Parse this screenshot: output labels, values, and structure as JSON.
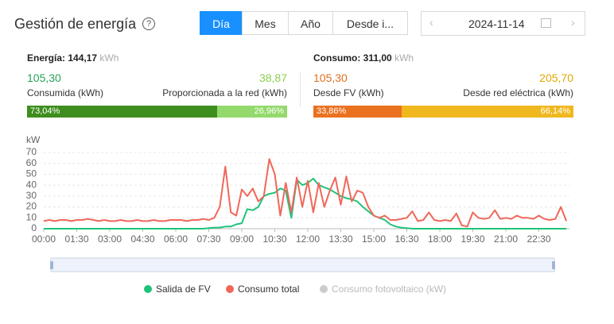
{
  "header": {
    "title": "Gestión de energía",
    "tabs": [
      "Día",
      "Mes",
      "Año",
      "Desde i..."
    ],
    "active_tab": 0,
    "date": "2024-11-14"
  },
  "panels": [
    {
      "label": "Energía:",
      "total": "144,17",
      "unit": "kWh",
      "parts": [
        {
          "value": "105,30",
          "label": "Consumida (kWh)",
          "share": 73.04,
          "share_label": "73,04%",
          "color": "#3e8e1f",
          "text_color": "#27a35a"
        },
        {
          "value": "38,87",
          "label": "Proporcionada a la red (kWh)",
          "share": 26.96,
          "share_label": "26,96%",
          "color": "#93d96b",
          "text_color": "#8ccf4f"
        }
      ]
    },
    {
      "label": "Consumo:",
      "total": "311,00",
      "unit": "kWh",
      "parts": [
        {
          "value": "105,30",
          "label": "Desde FV (kWh)",
          "share": 33.86,
          "share_label": "33,86%",
          "color": "#ea7120",
          "text_color": "#e07020"
        },
        {
          "value": "205,70",
          "label": "Desde red eléctrica (kWh)",
          "share": 66.14,
          "share_label": "66,14%",
          "color": "#efb81e",
          "text_color": "#e0a800"
        }
      ]
    }
  ],
  "chart_data": {
    "type": "line",
    "y_axis_label": "kW",
    "categories": [
      "00:00",
      null,
      null,
      null,
      null,
      null,
      "01:30",
      null,
      null,
      null,
      null,
      null,
      "03:00",
      null,
      null,
      null,
      null,
      null,
      "04:30",
      null,
      null,
      null,
      null,
      null,
      "06:00",
      null,
      null,
      null,
      null,
      null,
      "07:30",
      null,
      null,
      null,
      null,
      null,
      "09:00",
      null,
      null,
      null,
      null,
      null,
      "10:30",
      null,
      null,
      null,
      null,
      null,
      "12:00",
      null,
      null,
      null,
      null,
      null,
      "13:30",
      null,
      null,
      null,
      null,
      null,
      "15:00",
      null,
      null,
      null,
      null,
      null,
      "16:30",
      null,
      null,
      null,
      null,
      null,
      "18:00",
      null,
      null,
      null,
      null,
      null,
      "19:30",
      null,
      null,
      null,
      null,
      null,
      "21:00",
      null,
      null,
      null,
      null,
      null,
      "22:30",
      null,
      null,
      null,
      null,
      null
    ],
    "series": [
      {
        "name": "Salida de FV",
        "color": "#1fc27a",
        "values": [
          0,
          0,
          0,
          0,
          0,
          0,
          0,
          0,
          0,
          0,
          0,
          0,
          0,
          0,
          0,
          0,
          0,
          0,
          0,
          0,
          0,
          0,
          0,
          0,
          0,
          0,
          0,
          0,
          0,
          0,
          0.5,
          1,
          1,
          2,
          2,
          4,
          5,
          18,
          17,
          20,
          30,
          32,
          33,
          37,
          35,
          10,
          45,
          40,
          42,
          46,
          40,
          38,
          36,
          33,
          30,
          28,
          27,
          25,
          20,
          16,
          12,
          10,
          8,
          4,
          2,
          1,
          0.5,
          0,
          0,
          0,
          0,
          0,
          0,
          0,
          0,
          0,
          0,
          0,
          0,
          0,
          0,
          0,
          0,
          0,
          0,
          0,
          0,
          0,
          0,
          0,
          0,
          0,
          0,
          0,
          0,
          0
        ]
      },
      {
        "name": "Consumo total",
        "color": "#f0675a",
        "values": [
          7,
          8,
          7,
          8,
          8,
          7,
          8,
          8,
          9,
          8,
          7,
          8,
          7,
          7,
          8,
          7,
          7,
          8,
          7,
          7,
          8,
          7,
          7,
          8,
          8,
          8,
          7,
          8,
          8,
          9,
          8,
          10,
          20,
          57,
          15,
          12,
          36,
          30,
          37,
          25,
          30,
          64,
          50,
          12,
          42,
          15,
          47,
          20,
          44,
          15,
          42,
          20,
          35,
          47,
          22,
          48,
          25,
          35,
          33,
          20,
          12,
          10,
          12,
          8,
          8,
          9,
          10,
          16,
          7,
          8,
          15,
          8,
          7,
          8,
          7,
          14,
          3,
          2,
          15,
          10,
          9,
          10,
          17,
          9,
          10,
          9,
          12,
          10,
          10,
          9,
          12,
          9,
          8,
          9,
          20,
          7
        ]
      }
    ],
    "legend_inactive": [
      {
        "name": "Consumo fotovoltaico (kW)",
        "color": "#cccccc"
      }
    ],
    "ylim": [
      0,
      70
    ],
    "yticks": [
      0,
      10,
      20,
      30,
      40,
      50,
      60,
      70
    ],
    "grid": true
  }
}
